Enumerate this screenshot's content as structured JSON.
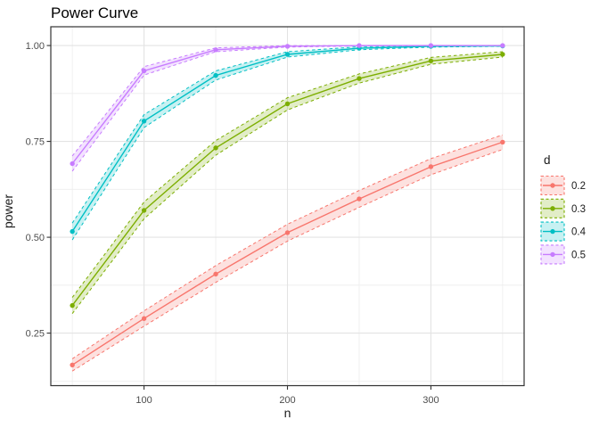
{
  "title": "Power Curve",
  "chart_data": {
    "type": "line",
    "title": "Power Curve",
    "xlabel": "n",
    "ylabel": "power",
    "x": [
      50,
      100,
      150,
      200,
      250,
      300,
      350
    ],
    "xlim": [
      35,
      365
    ],
    "ylim": [
      0.113,
      1.049
    ],
    "x_major_ticks": [
      100,
      200,
      300
    ],
    "x_major_tick_labels": [
      "100",
      "200",
      "300"
    ],
    "x_minor_gridlines": [
      50,
      150,
      250,
      350
    ],
    "y_major_ticks": [
      0.25,
      0.5,
      0.75,
      1.0
    ],
    "y_major_tick_labels": [
      "0.25",
      "0.50",
      "0.75",
      "1.00"
    ],
    "y_minor_gridlines": [
      0.125,
      0.375,
      0.625,
      0.875
    ],
    "grid": true,
    "legend": {
      "title": "d",
      "position": "right"
    },
    "ribbon_opacity": 0.22,
    "series": [
      {
        "name": "0.2",
        "color": "#F8766D",
        "values": [
          0.167,
          0.288,
          0.404,
          0.512,
          0.6,
          0.684,
          0.748
        ],
        "lower": [
          0.151,
          0.268,
          0.382,
          0.49,
          0.578,
          0.663,
          0.729
        ],
        "upper": [
          0.183,
          0.308,
          0.426,
          0.534,
          0.622,
          0.705,
          0.767
        ]
      },
      {
        "name": "0.3",
        "color": "#7CAE00",
        "values": [
          0.322,
          0.57,
          0.733,
          0.848,
          0.914,
          0.96,
          0.977
        ],
        "lower": [
          0.301,
          0.548,
          0.714,
          0.832,
          0.902,
          0.951,
          0.97
        ],
        "upper": [
          0.343,
          0.592,
          0.752,
          0.864,
          0.926,
          0.969,
          0.984
        ]
      },
      {
        "name": "0.4",
        "color": "#00BFC4",
        "values": [
          0.515,
          0.803,
          0.922,
          0.977,
          0.993,
          0.998,
          0.999
        ],
        "lower": [
          0.493,
          0.786,
          0.91,
          0.97,
          0.989,
          0.996,
          0.998
        ],
        "upper": [
          0.537,
          0.82,
          0.934,
          0.984,
          0.997,
          1.0,
          1.0
        ]
      },
      {
        "name": "0.5",
        "color": "#C77CFF",
        "values": [
          0.692,
          0.934,
          0.989,
          0.998,
          1.0,
          1.0,
          1.0
        ],
        "lower": [
          0.672,
          0.923,
          0.984,
          0.996,
          0.999,
          1.0,
          1.0
        ],
        "upper": [
          0.712,
          0.945,
          0.994,
          1.0,
          1.0,
          1.0,
          1.0
        ]
      }
    ],
    "theme": {
      "background": "#FFFFFF",
      "panel_border": "#333333",
      "grid_major": "#E3E3E3",
      "grid_minor": "#EDEDED",
      "tick_color": "#333333",
      "axis_text_color": "#4D4D4D",
      "text_color": "#1A1A1A"
    }
  }
}
